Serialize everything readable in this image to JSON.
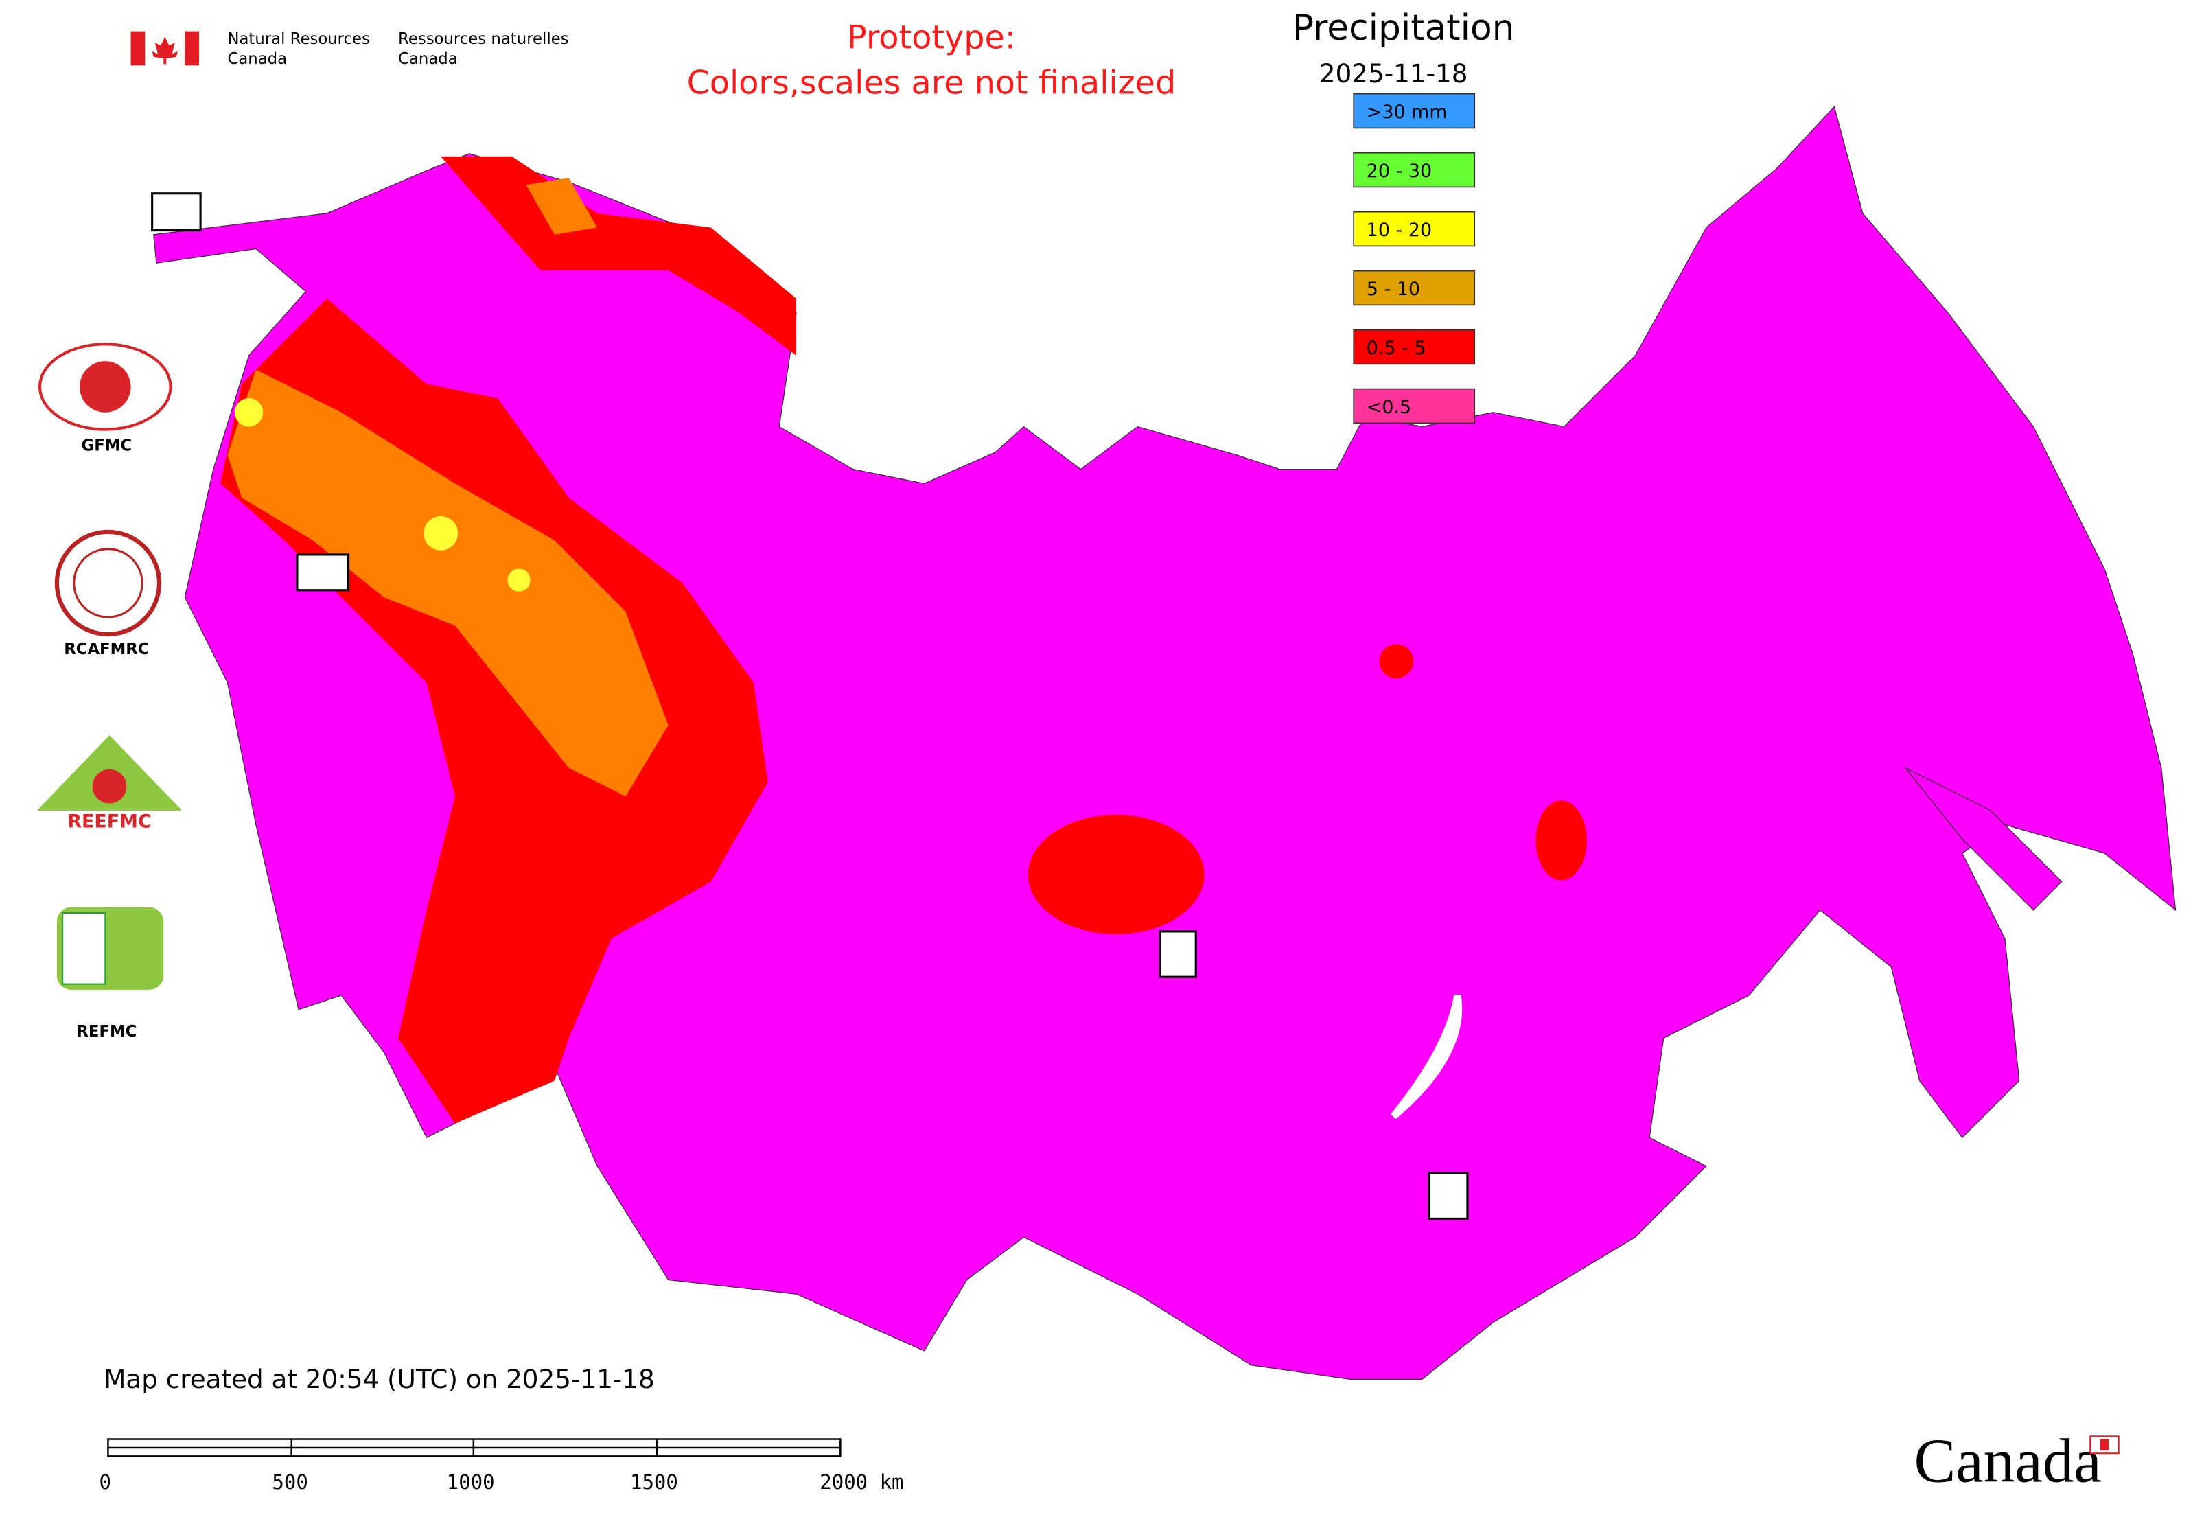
{
  "header": {
    "agency_en": [
      "Natural Resources",
      "Canada"
    ],
    "agency_fr": [
      "Ressources naturelles",
      "Canada"
    ],
    "notice": [
      "Prototype:",
      "Colors,scales are not finalized"
    ]
  },
  "legend": {
    "title": "Precipitation",
    "date": "2025-11-18",
    "items": [
      {
        "label": ">30 mm",
        "color": "#3399ff"
      },
      {
        "label": "20 - 30",
        "color": "#66ff33"
      },
      {
        "label": "10 - 20",
        "color": "#ffff00"
      },
      {
        "label": "5 - 10",
        "color": "#e0a000"
      },
      {
        "label": "0.5 - 5",
        "color": "#ff0000"
      },
      {
        "label": "<0.5",
        "color": "#ff3399"
      }
    ]
  },
  "logos": [
    "GFMC",
    "RCAFMRC",
    "REEFMC",
    "REFMC"
  ],
  "footer": {
    "created": "Map created at 20:54 (UTC) on 2025-11-18",
    "scale": [
      "0",
      "500",
      "1000",
      "1500",
      "2000 km"
    ],
    "wordmark": "Canada"
  }
}
